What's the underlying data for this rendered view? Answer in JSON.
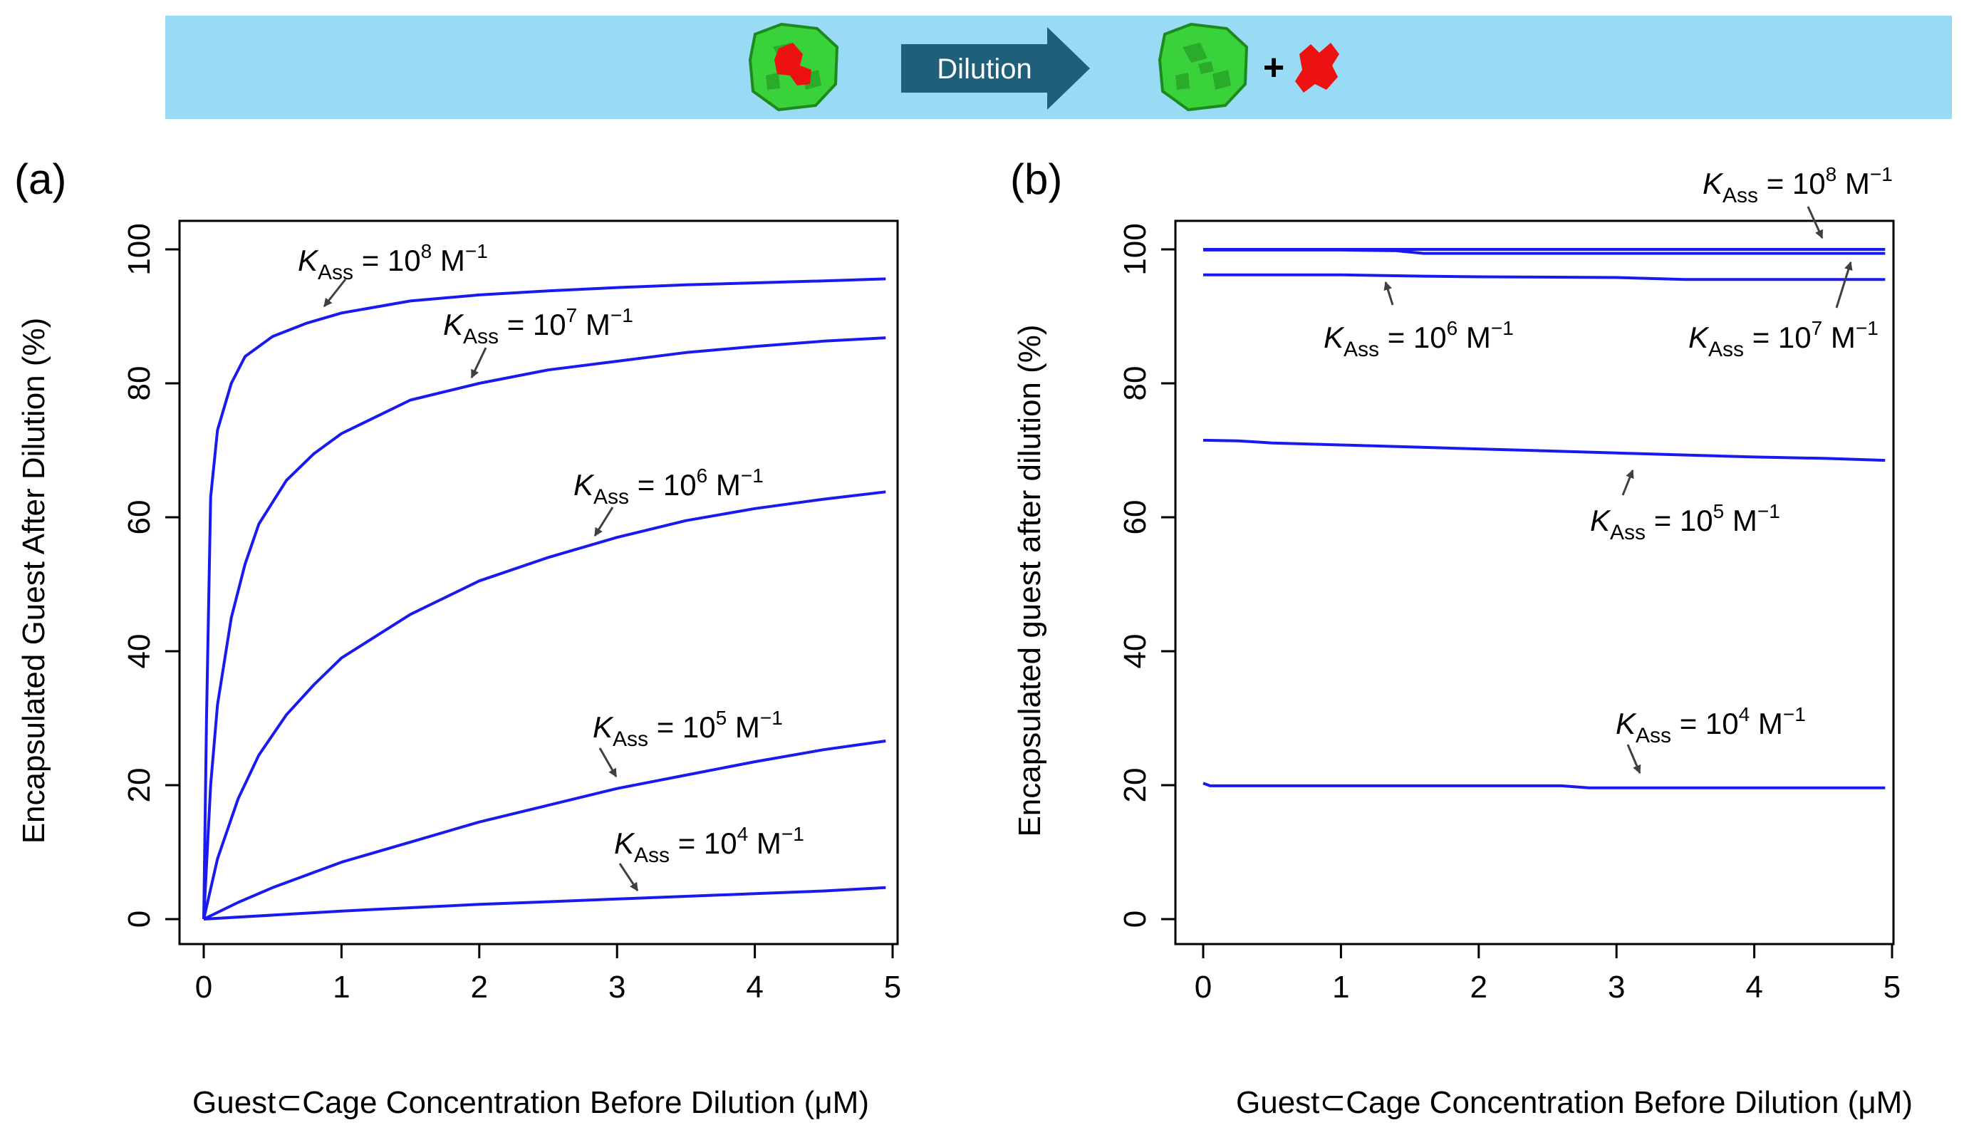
{
  "banner": {
    "arrow_label": "Dilution",
    "plus_sign": "+",
    "colors": {
      "background": "#99dbf5",
      "arrow": "#1f5f7a",
      "cage": "#3ad23a",
      "cage_edge": "#1e8a1e",
      "guest": "#ee1111"
    },
    "icons": [
      "cage-with-guest-icon",
      "empty-cage-icon",
      "free-guest-icon"
    ]
  },
  "colors": {
    "line": "#1a1aee",
    "annotation_arrow": "#404040",
    "axis": "#000000"
  },
  "chart_data": [
    {
      "panel_label": "(a)",
      "type": "line",
      "xlabel": "Guest⊂Cage Concentration Before Dilution (μM)",
      "ylabel": "Encapsulated Guest After Dilution (%)",
      "xlim": [
        0,
        5
      ],
      "ylim": [
        0,
        100
      ],
      "xticks": [
        0,
        1,
        2,
        3,
        4,
        5
      ],
      "yticks": [
        0,
        20,
        40,
        60,
        80,
        100
      ],
      "grid": false,
      "series": [
        {
          "label": {
            "K": "K",
            "sub": "Ass",
            "mid": " = 10",
            "exp": "8",
            "unit": " M",
            "uexp": "−1"
          },
          "x": [
            0,
            0.02,
            0.05,
            0.1,
            0.2,
            0.3,
            0.5,
            0.75,
            1,
            1.5,
            2,
            2.5,
            3,
            3.5,
            4,
            4.5,
            4.95
          ],
          "y": [
            0,
            30,
            63,
            73,
            80,
            84,
            87,
            89,
            90.5,
            92.3,
            93.2,
            93.8,
            94.3,
            94.7,
            95.0,
            95.3,
            95.6
          ]
        },
        {
          "label": {
            "K": "K",
            "sub": "Ass",
            "mid": " = 10",
            "exp": "7",
            "unit": " M",
            "uexp": "−1"
          },
          "x": [
            0,
            0.05,
            0.1,
            0.2,
            0.3,
            0.4,
            0.6,
            0.8,
            1,
            1.5,
            2,
            2.5,
            3,
            3.5,
            4,
            4.5,
            4.95
          ],
          "y": [
            0,
            20,
            32,
            45,
            53,
            59,
            65.5,
            69.5,
            72.5,
            77.5,
            80,
            82,
            83.3,
            84.6,
            85.5,
            86.3,
            86.8
          ]
        },
        {
          "label": {
            "K": "K",
            "sub": "Ass",
            "mid": " = 10",
            "exp": "6",
            "unit": " M",
            "uexp": "−1"
          },
          "x": [
            0,
            0.1,
            0.25,
            0.4,
            0.6,
            0.8,
            1,
            1.5,
            2,
            2.5,
            3,
            3.5,
            4,
            4.5,
            4.95
          ],
          "y": [
            0,
            9,
            18,
            24.5,
            30.5,
            35,
            39,
            45.5,
            50.5,
            54,
            57,
            59.5,
            61.3,
            62.7,
            63.8
          ]
        },
        {
          "label": {
            "K": "K",
            "sub": "Ass",
            "mid": " = 10",
            "exp": "5",
            "unit": " M",
            "uexp": "−1"
          },
          "x": [
            0,
            0.25,
            0.5,
            1,
            1.5,
            2,
            2.5,
            3,
            3.5,
            4,
            4.5,
            4.95
          ],
          "y": [
            0,
            2.5,
            4.7,
            8.5,
            11.5,
            14.5,
            17,
            19.5,
            21.5,
            23.5,
            25.3,
            26.6
          ]
        },
        {
          "label": {
            "K": "K",
            "sub": "Ass",
            "mid": " = 10",
            "exp": "4",
            "unit": " M",
            "uexp": "−1"
          },
          "x": [
            0,
            0.5,
            1,
            1.5,
            2,
            2.5,
            3,
            3.5,
            4,
            4.5,
            4.95
          ],
          "y": [
            0,
            0.6,
            1.2,
            1.7,
            2.2,
            2.6,
            3.0,
            3.4,
            3.8,
            4.2,
            4.7
          ]
        }
      ]
    },
    {
      "panel_label": "(b)",
      "type": "line",
      "xlabel": "Guest⊂Cage Concentration Before Dilution (μM)",
      "ylabel": "Encapsulated guest after dilution (%)",
      "xlim": [
        0,
        5
      ],
      "ylim": [
        0,
        100
      ],
      "xticks": [
        0,
        1,
        2,
        3,
        4,
        5
      ],
      "yticks": [
        0,
        20,
        40,
        60,
        80,
        100
      ],
      "grid": false,
      "series": [
        {
          "label": {
            "K": "K",
            "sub": "Ass",
            "mid": " = 10",
            "exp": "8",
            "unit": " M",
            "uexp": "−1"
          },
          "x": [
            0,
            1,
            2,
            3,
            4,
            4.95
          ],
          "y": [
            100,
            100,
            100,
            100,
            100,
            100
          ]
        },
        {
          "label": {
            "K": "K",
            "sub": "Ass",
            "mid": " = 10",
            "exp": "7",
            "unit": " M",
            "uexp": "−1"
          },
          "x": [
            0,
            1,
            1.4,
            1.6,
            2,
            3,
            4,
            4.95
          ],
          "y": [
            99.9,
            99.9,
            99.8,
            99.4,
            99.4,
            99.4,
            99.4,
            99.4
          ]
        },
        {
          "label": {
            "K": "K",
            "sub": "Ass",
            "mid": " = 10",
            "exp": "6",
            "unit": " M",
            "uexp": "−1"
          },
          "x": [
            0,
            1,
            1.6,
            2,
            3,
            3.5,
            4,
            4.95
          ],
          "y": [
            96.2,
            96.2,
            96.0,
            95.9,
            95.8,
            95.5,
            95.5,
            95.5
          ]
        },
        {
          "label": {
            "K": "K",
            "sub": "Ass",
            "mid": " = 10",
            "exp": "5",
            "unit": " M",
            "uexp": "−1"
          },
          "x": [
            0,
            0.25,
            0.5,
            1,
            1.5,
            2,
            2.5,
            3,
            3.5,
            4,
            4.5,
            4.95
          ],
          "y": [
            71.5,
            71.4,
            71.1,
            70.8,
            70.5,
            70.2,
            69.9,
            69.6,
            69.3,
            69.0,
            68.8,
            68.5
          ]
        },
        {
          "label": {
            "K": "K",
            "sub": "Ass",
            "mid": " = 10",
            "exp": "4",
            "unit": " M",
            "uexp": "−1"
          },
          "x": [
            0,
            0.05,
            1,
            2,
            2.6,
            2.8,
            3.5,
            4.5,
            4.95
          ],
          "y": [
            20.3,
            19.9,
            19.9,
            19.9,
            19.9,
            19.6,
            19.6,
            19.6,
            19.6
          ]
        }
      ]
    }
  ]
}
